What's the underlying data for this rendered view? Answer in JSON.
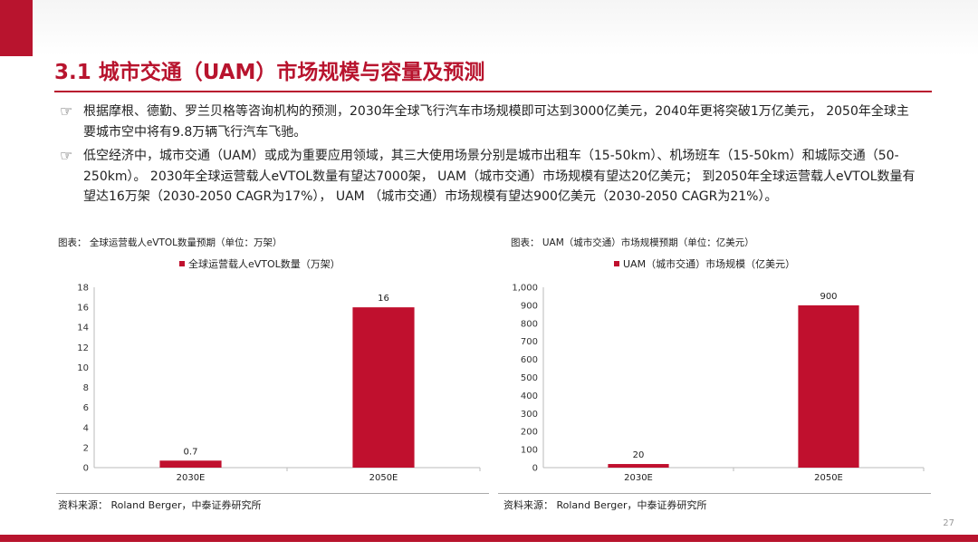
{
  "title": "3.1 城市交通（UAM）市场规模与容量及预测",
  "bullets": [
    "根据摩根、德勤、罗兰贝格等咨询机构的预测，2030年全球飞行汽车市场规模即可达到3000亿美元，2040年更将突破1万亿美元， 2050年全球主要城市空中将有9.8万辆飞行汽车飞驰。",
    "低空经济中，城市交通（UAM）或成为重要应用领域，其三大使用场景分别是城市出租车（15-50km）、机场班车（15-50km）和城际交通（50-250km）。 2030年全球运营载人eVTOL数量有望达7000架， UAM（城市交通）市场规模有望达20亿美元； 到2050年全球运营载人eVTOL数量有望达16万架（2030-2050 CAGR为17%）， UAM （城市交通）市场规模有望达900亿美元（2030-2050 CAGR为21%）。"
  ],
  "source": "资料来源： Roland Berger，中泰证券研究所",
  "page_number": "27",
  "colors": {
    "accent": "#b8142e",
    "bar": "#c0102e"
  },
  "chart_data": [
    {
      "type": "bar",
      "caption": "图表： 全球运营载人eVTOL数量预期（单位：万架）",
      "categories": [
        "2030E",
        "2050E"
      ],
      "series": [
        {
          "name": "全球运营载人eVTOL数量（万架）",
          "values": [
            0.7,
            16
          ]
        }
      ],
      "data_labels": [
        "0.7",
        "16"
      ],
      "ylim": [
        0,
        18
      ],
      "yticks": [
        0,
        2,
        4,
        6,
        8,
        10,
        12,
        14,
        16,
        18
      ],
      "ytick_labels": [
        "0",
        "2",
        "4",
        "6",
        "8",
        "10",
        "12",
        "14",
        "16",
        "18"
      ],
      "legend": "top",
      "grid": false
    },
    {
      "type": "bar",
      "caption": "图表： UAM（城市交通）市场规模预期（单位：亿美元）",
      "categories": [
        "2030E",
        "2050E"
      ],
      "series": [
        {
          "name": "UAM（城市交通）市场规模（亿美元）",
          "values": [
            20,
            900
          ]
        }
      ],
      "data_labels": [
        "20",
        "900"
      ],
      "ylim": [
        0,
        1000
      ],
      "yticks": [
        0,
        100,
        200,
        300,
        400,
        500,
        600,
        700,
        800,
        900,
        1000
      ],
      "ytick_labels": [
        "0",
        "100",
        "200",
        "300",
        "400",
        "500",
        "600",
        "700",
        "800",
        "900",
        "1,000"
      ],
      "legend": "top",
      "grid": false
    }
  ]
}
